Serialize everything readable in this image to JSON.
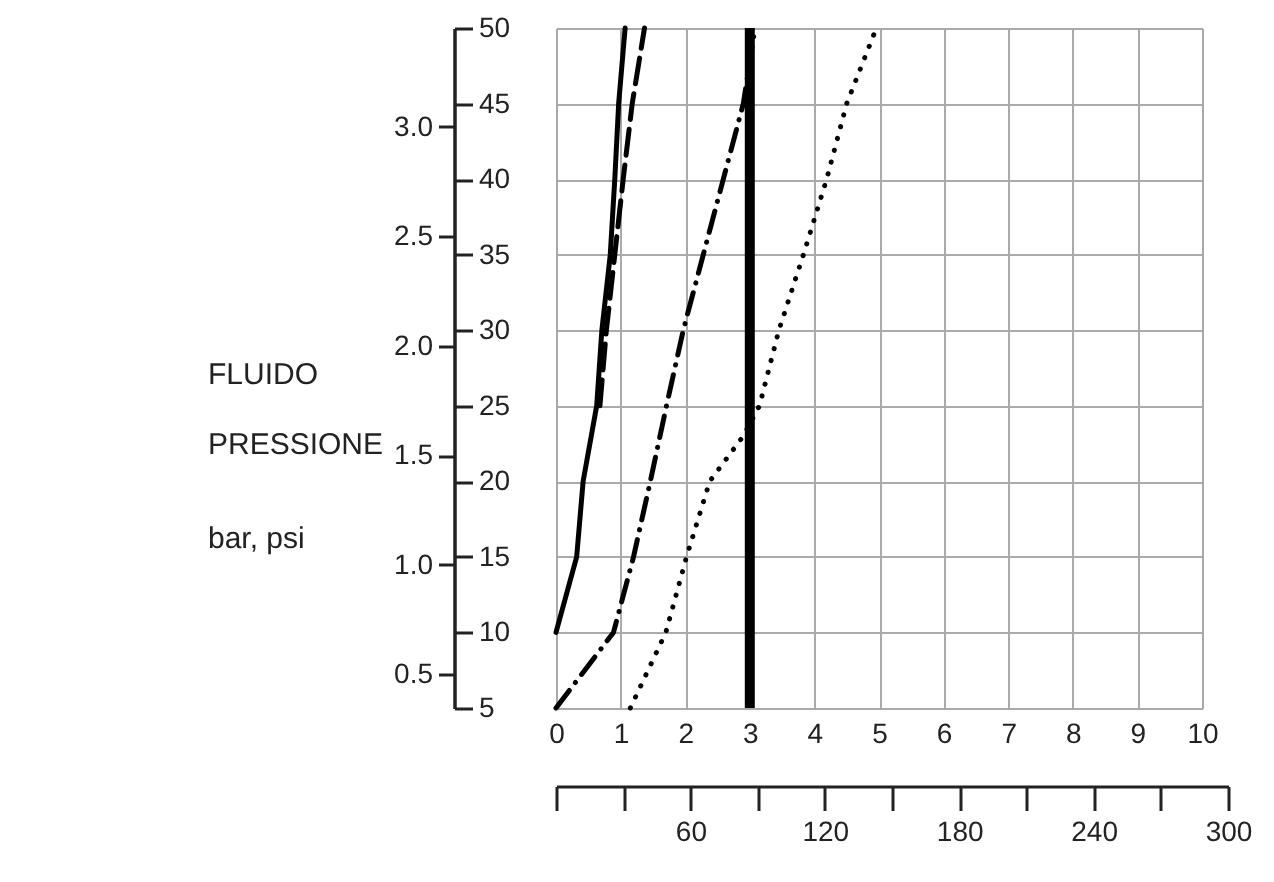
{
  "chart_data": {
    "type": "line",
    "annotations": [
      "FLUIDO PRESSIONE",
      "bar, psi"
    ],
    "xlim": [
      0,
      10
    ],
    "xticks": [
      0,
      1,
      2,
      3,
      4,
      5,
      6,
      7,
      8,
      9,
      10
    ],
    "ylim": [
      5,
      50
    ],
    "yticks": [
      5,
      10,
      15,
      20,
      25,
      30,
      35,
      40,
      45,
      50
    ],
    "y2lim": [
      0.345,
      3.45
    ],
    "y2ticks": [
      0.5,
      {
        "value": 1,
        "label": "1.0"
      },
      1.5,
      {
        "value": 2,
        "label": "2.0"
      },
      2.5,
      {
        "value": 3,
        "label": "3.0"
      }
    ],
    "x2lim": [
      0,
      300
    ],
    "x2ticks": [
      {
        "value": 0,
        "label": null
      },
      {
        "value": 30,
        "label": null
      },
      60,
      {
        "value": 90,
        "label": null
      },
      120,
      {
        "value": 150,
        "label": null
      },
      180,
      {
        "value": 210,
        "label": null
      },
      240,
      {
        "value": 270,
        "label": null
      },
      300
    ],
    "grid": true,
    "marker": "none",
    "series": [
      {
        "color": "#000000",
        "line_style": "solid",
        "x": [
          0,
          0.32,
          0.42,
          0.63,
          0.71,
          0.84,
          0.91,
          0.97,
          1.07
        ],
        "values": [
          10,
          15,
          20,
          25,
          30,
          35,
          40,
          45,
          50
        ]
      },
      {
        "color": "#000000",
        "line_style": "dashed",
        "x": [
          0.68,
          0.78,
          0.91,
          1.04,
          1.18,
          1.37
        ],
        "values": [
          25,
          30,
          35,
          40,
          45,
          50
        ]
      },
      {
        "color": "#000000",
        "line_style": "dashdot",
        "x": [
          0,
          0.89,
          1.2,
          1.46,
          1.71,
          1.97,
          2.28,
          2.59,
          2.9,
          3.08
        ],
        "values": [
          5,
          10,
          15,
          20,
          25,
          30,
          35,
          40,
          45,
          50
        ]
      },
      {
        "color": "#000000",
        "line_style": "dotted",
        "x": [
          1.15,
          1.7,
          2.02,
          2.38,
          2.9,
          3.15,
          3.45,
          3.83,
          4.19,
          4.5,
          4.96
        ],
        "values": [
          5,
          10,
          15,
          20,
          23,
          25,
          30,
          35,
          40,
          45,
          50
        ]
      }
    ],
    "ref_lines": [
      {
        "axis": "x",
        "value": 3,
        "color": "#000000"
      }
    ]
  }
}
